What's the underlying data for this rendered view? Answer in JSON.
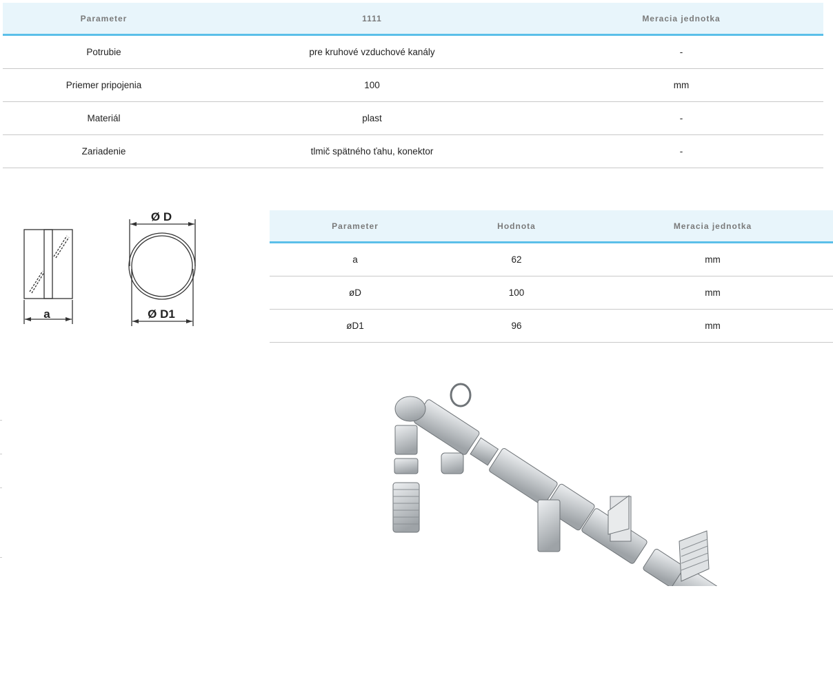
{
  "spec_table": {
    "headers": [
      "Parameter",
      "1111",
      "Meracia jednotka"
    ],
    "rows": [
      [
        "Potrubie",
        "pre kruhové vzduchové kanály",
        "-"
      ],
      [
        "Priemer pripojenia",
        "100",
        "mm"
      ],
      [
        "Materiál",
        "plast",
        "-"
      ],
      [
        "Zariadenie",
        "tlmič spätného ťahu, konektor",
        "-"
      ]
    ]
  },
  "diagram": {
    "label_a": "a",
    "label_D": "Ø D",
    "label_D1": "Ø D1"
  },
  "dimension_table": {
    "headers": [
      "Parameter",
      "Hodnota",
      "Meracia jednotka"
    ],
    "rows": [
      [
        "a",
        "62",
        "mm"
      ],
      [
        "øD",
        "100",
        "mm"
      ],
      [
        "øD1",
        "96",
        "mm"
      ]
    ]
  },
  "colors": {
    "header_bg": "#e8f5fb",
    "header_border": "#5bbfe9"
  }
}
